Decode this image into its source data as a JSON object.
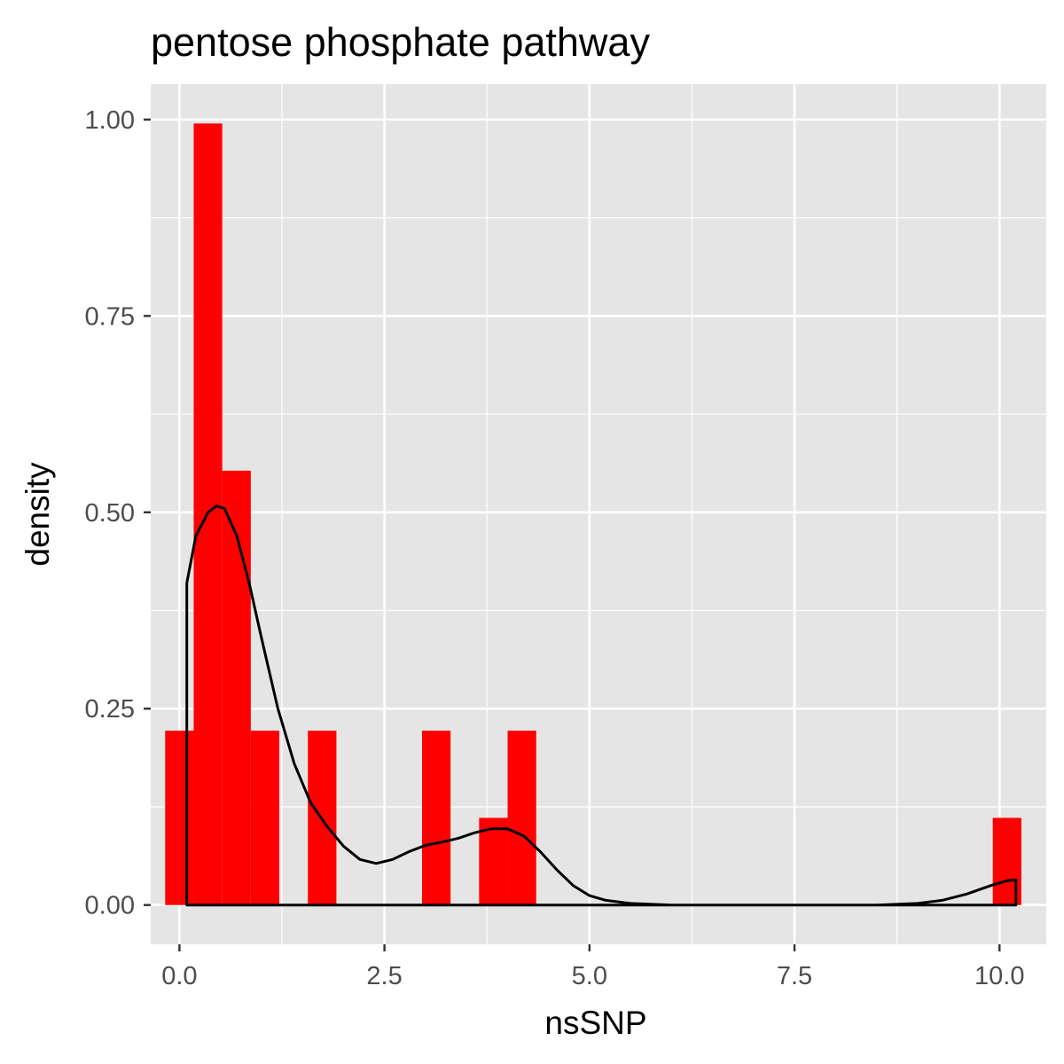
{
  "chart_data": {
    "type": "bar",
    "title": "pentose phosphate pathway",
    "xlabel": "nsSNP",
    "ylabel": "density",
    "xlim": [
      -0.35,
      10.57
    ],
    "ylim": [
      -0.05,
      1.045
    ],
    "x_ticks": [
      0.0,
      2.5,
      5.0,
      7.5,
      10.0
    ],
    "x_tick_labels": [
      "0.0",
      "2.5",
      "5.0",
      "7.5",
      "10.0"
    ],
    "y_ticks": [
      0.0,
      0.25,
      0.5,
      0.75,
      1.0
    ],
    "y_tick_labels": [
      "0.00",
      "0.25",
      "0.50",
      "0.75",
      "1.00"
    ],
    "grid": true,
    "legend": "none",
    "bin_width": 0.348,
    "histogram": {
      "color": "#ff0000",
      "bins": [
        {
          "center": 0.0,
          "density": 0.222
        },
        {
          "center": 0.348,
          "density": 0.995
        },
        {
          "center": 0.696,
          "density": 0.553
        },
        {
          "center": 1.044,
          "density": 0.222
        },
        {
          "center": 1.74,
          "density": 0.222
        },
        {
          "center": 3.132,
          "density": 0.222
        },
        {
          "center": 3.828,
          "density": 0.111
        },
        {
          "center": 4.176,
          "density": 0.222
        },
        {
          "center": 10.092,
          "density": 0.111
        }
      ]
    },
    "density_curve": {
      "color": "#000000",
      "x": [
        0.09,
        0.2,
        0.35,
        0.45,
        0.55,
        0.7,
        0.85,
        1.0,
        1.2,
        1.4,
        1.6,
        1.8,
        2.0,
        2.2,
        2.4,
        2.6,
        2.8,
        3.0,
        3.2,
        3.4,
        3.6,
        3.8,
        4.0,
        4.2,
        4.4,
        4.6,
        4.8,
        5.0,
        5.2,
        5.5,
        6.0,
        7.0,
        8.0,
        8.5,
        9.0,
        9.3,
        9.6,
        9.9,
        10.1,
        10.2
      ],
      "y": [
        0.41,
        0.47,
        0.5,
        0.508,
        0.505,
        0.47,
        0.41,
        0.34,
        0.25,
        0.18,
        0.13,
        0.1,
        0.075,
        0.058,
        0.053,
        0.058,
        0.068,
        0.076,
        0.08,
        0.085,
        0.092,
        0.097,
        0.097,
        0.088,
        0.068,
        0.045,
        0.025,
        0.012,
        0.006,
        0.002,
        0.0,
        0.0,
        0.0,
        0.0,
        0.002,
        0.006,
        0.014,
        0.025,
        0.031,
        0.032
      ]
    }
  }
}
